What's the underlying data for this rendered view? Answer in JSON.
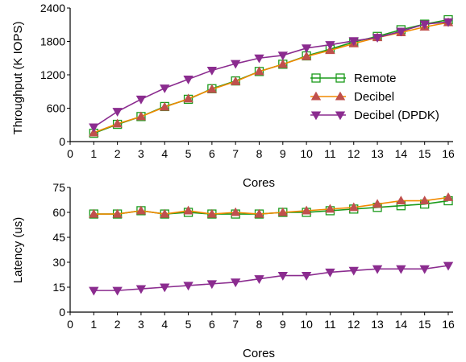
{
  "chart_data": [
    {
      "type": "line",
      "xlabel": "Cores",
      "ylabel": "Throughput (K IOPS)",
      "x": [
        1,
        2,
        3,
        4,
        5,
        6,
        7,
        8,
        9,
        10,
        11,
        12,
        13,
        14,
        15,
        16
      ],
      "xlim": [
        0,
        16
      ],
      "xticks": [
        "0",
        "1",
        "2",
        "3",
        "4",
        "5",
        "6",
        "7",
        "8",
        "9",
        "10",
        "11",
        "12",
        "13",
        "14",
        "15",
        "16"
      ],
      "ylim": [
        0,
        2400
      ],
      "yticks": [
        "0",
        "600",
        "1200",
        "1800",
        "2400"
      ],
      "grid": false,
      "legend_position": "center-right",
      "series": [
        {
          "name": "Remote",
          "color": "#1a9a1a",
          "marker": "square-open",
          "values": [
            150,
            310,
            450,
            630,
            760,
            950,
            1090,
            1260,
            1390,
            1540,
            1660,
            1790,
            1890,
            2010,
            2110,
            2190
          ]
        },
        {
          "name": "Decibel",
          "color": "#f28a00",
          "marker": "triangle-up",
          "marker_color": "#c0504d",
          "values": [
            160,
            320,
            450,
            620,
            770,
            940,
            1080,
            1260,
            1390,
            1530,
            1640,
            1760,
            1870,
            1960,
            2060,
            2140
          ]
        },
        {
          "name": "Decibel (DPDK)",
          "color": "#8b2c8f",
          "marker": "triangle-down",
          "values": [
            260,
            540,
            760,
            960,
            1120,
            1280,
            1400,
            1500,
            1550,
            1680,
            1740,
            1810,
            1870,
            1980,
            2110,
            2150
          ]
        }
      ]
    },
    {
      "type": "line",
      "xlabel": "Cores",
      "ylabel": "Latency (us)",
      "x": [
        1,
        2,
        3,
        4,
        5,
        6,
        7,
        8,
        9,
        10,
        11,
        12,
        13,
        14,
        15,
        16
      ],
      "xlim": [
        0,
        16
      ],
      "xticks": [
        "0",
        "1",
        "2",
        "3",
        "4",
        "5",
        "6",
        "7",
        "8",
        "9",
        "10",
        "11",
        "12",
        "13",
        "14",
        "15",
        "16"
      ],
      "ylim": [
        0,
        75
      ],
      "yticks": [
        "0",
        "15",
        "30",
        "45",
        "60",
        "75"
      ],
      "grid": false,
      "series": [
        {
          "name": "Remote",
          "color": "#1a9a1a",
          "marker": "square-open",
          "values": [
            59,
            59,
            61,
            59,
            60,
            59,
            59,
            59,
            60,
            60,
            61,
            62,
            63,
            64,
            65,
            67
          ]
        },
        {
          "name": "Decibel",
          "color": "#f28a00",
          "marker": "triangle-up",
          "marker_color": "#c0504d",
          "values": [
            59,
            59,
            61,
            59,
            61,
            59,
            60,
            59,
            60,
            61,
            62,
            63,
            65,
            67,
            67,
            69
          ]
        },
        {
          "name": "Decibel (DPDK)",
          "color": "#8b2c8f",
          "marker": "triangle-down",
          "values": [
            13,
            13,
            14,
            15,
            16,
            17,
            18,
            20,
            22,
            22,
            24,
            25,
            26,
            26,
            26,
            28
          ]
        }
      ]
    }
  ]
}
